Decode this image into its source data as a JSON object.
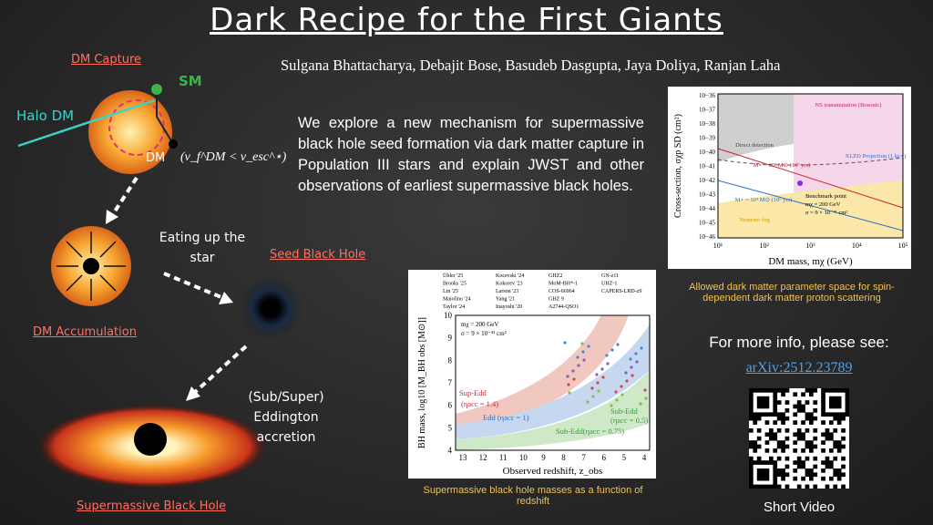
{
  "header": {
    "title": "Dark Recipe for the First Giants",
    "authors": "Sulgana Bhattacharya, Debajit Bose, Basudeb Dasgupta, Jaya Doliya, Ranjan Laha"
  },
  "abstract": "We explore a new mechanism for supermassive black hole seed formation via dark matter capture in Population III stars and explain JWST and other observations of earliest supermassive black holes.",
  "illustration": {
    "capture": "DM Capture",
    "sm": "SM",
    "halo_dm": "Halo DM",
    "dm": "DM",
    "condition": "(v_f^DM < v_esc^⋆)",
    "eating": "Eating up the star",
    "seed": "Seed Black Hole",
    "accumulation": "DM Accumulation",
    "accretion": "(Sub/Super) Eddington accretion",
    "smbh": "Supermassive Black Hole"
  },
  "figure_right": {
    "y_label": "Cross-section, σχp SD (cm²)",
    "x_label": "DM mass, mχ (GeV)",
    "yticks": [
      "10−36",
      "10−37",
      "10−38",
      "10−39",
      "10−40",
      "10−41",
      "10−42",
      "10−43",
      "10−44",
      "10−45",
      "10−46"
    ],
    "xticks": [
      "10¹",
      "10²",
      "10³",
      "10⁴",
      "10⁵"
    ],
    "regions": [
      "NS transmutation (Bosonic)",
      "Direct detection",
      "XLZD Projection (1 kt-y)",
      "Neutrino fog",
      "M⋆ = 10⁷ M⊙ (10⁷ yrs)",
      "M⋆ = 10⁴ M⊙ (10⁶ yrs)"
    ],
    "benchmark": [
      "Benchmark point",
      "mχ = 200 GeV",
      "σ = 9 × 10⁻⁴¹ cm²"
    ],
    "caption": "Allowed dark matter parameter space for spin-dependent dark matter proton scattering"
  },
  "figure_middle": {
    "y_label": "BH mass, log10 [M_BH obs [M⊙]]",
    "x_label": "Observed redshift, z_obs",
    "xticks": [
      "13",
      "12",
      "11",
      "10",
      "9",
      "8",
      "7",
      "6",
      "5",
      "4"
    ],
    "yticks": [
      "4",
      "5",
      "6",
      "7",
      "8",
      "9",
      "10"
    ],
    "legend": [
      "Übler '25",
      "Brooks '25",
      "Lin '25",
      "Maiolino '24",
      "Taylor '24",
      "Kocevski '24",
      "Kokorev '23",
      "Larson '23",
      "Yang '21",
      "Inayoshi '20",
      "GHZ2",
      "MoM-BH*-1",
      "COS-66964",
      "GHZ 9",
      "A2744-QSO1",
      "GN-z11",
      "UHZ-1",
      "CAPERS-LRD-z9"
    ],
    "info": [
      "mχ = 200 GeV",
      "σ = 9 × 10⁻⁴¹ cm²"
    ],
    "bands": [
      "Sup-Edd",
      "(ηacc = 1.4)",
      "Edd (ηacc = 1)",
      "Sub-Edd(ηacc = 0.75)",
      "Sub-Edd",
      "(ηacc = 0.5)"
    ],
    "caption": "Supermassive black hole masses as a function of redshift"
  },
  "links": {
    "more_info": "For more info, please see:",
    "arxiv": "arXiv:2512.23789",
    "video": "Short Video"
  }
}
